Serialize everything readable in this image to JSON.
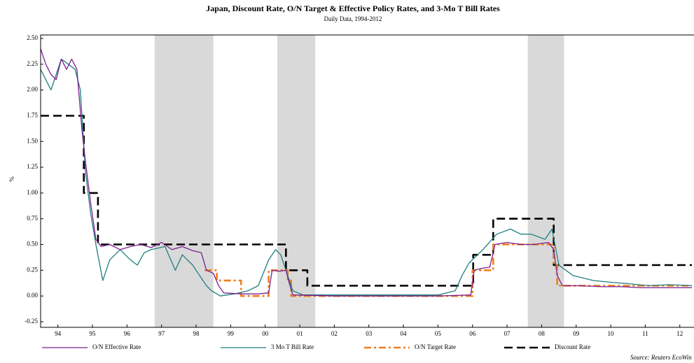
{
  "chart_data": {
    "type": "line",
    "title": "Japan, Discount Rate, O/N Target & Effective Policy Rates, and 3-Mo T Bill Rates",
    "subtitle": "Daily Data, 1994-2012",
    "y_label": "%",
    "source": "Source: Reuters EcoWin",
    "xlim": [
      1994,
      2012.85
    ],
    "ylim": [
      -0.25,
      2.5
    ],
    "xticks": [
      {
        "value": 1994.5,
        "label": "94"
      },
      {
        "value": 1995.5,
        "label": "95"
      },
      {
        "value": 1996.5,
        "label": "96"
      },
      {
        "value": 1997.5,
        "label": "97"
      },
      {
        "value": 1998.5,
        "label": "98"
      },
      {
        "value": 1999.5,
        "label": "99"
      },
      {
        "value": 2000.5,
        "label": "00"
      },
      {
        "value": 2001.5,
        "label": "01"
      },
      {
        "value": 2002.5,
        "label": "02"
      },
      {
        "value": 2003.5,
        "label": "03"
      },
      {
        "value": 2004.5,
        "label": "04"
      },
      {
        "value": 2005.5,
        "label": "05"
      },
      {
        "value": 2006.5,
        "label": "06"
      },
      {
        "value": 2007.5,
        "label": "07"
      },
      {
        "value": 2008.5,
        "label": "08"
      },
      {
        "value": 2009.5,
        "label": "09"
      },
      {
        "value": 2010.5,
        "label": "10"
      },
      {
        "value": 2011.5,
        "label": "11"
      },
      {
        "value": 2012.5,
        "label": "12"
      }
    ],
    "yticks": [
      {
        "value": 2.5,
        "label": "2.50"
      },
      2.25,
      {
        "value": 2.0,
        "label": "2.00"
      },
      1.75,
      {
        "value": 1.5,
        "label": "1.50"
      },
      1.25,
      {
        "value": 1.0,
        "label": "1.00"
      },
      0.75,
      {
        "value": 0.5,
        "label": "0.50"
      },
      0.25,
      {
        "value": 0,
        "label": "0.00"
      },
      -0.25
    ],
    "shaded_periods": [
      [
        1997.3,
        1999.0
      ],
      [
        2000.85,
        2001.95
      ],
      [
        2008.1,
        2009.15
      ]
    ],
    "shade_color": "#d9d9d9",
    "series": [
      {
        "name": "O/N Effective Rate",
        "color": "#7b1f8c",
        "line_style": "solid",
        "x": [
          1994,
          1994.15,
          1994.3,
          1994.45,
          1994.6,
          1994.75,
          1994.9,
          1995.05,
          1995.2,
          1995.3,
          1995.45,
          1995.6,
          1995.75,
          1996.0,
          1996.3,
          1996.6,
          1996.9,
          1997.2,
          1997.5,
          1997.8,
          1998.1,
          1998.4,
          1998.65,
          1998.8,
          1999.0,
          1999.15,
          1999.3,
          1999.8,
          2000.3,
          2000.6,
          2000.7,
          2000.9,
          2001.1,
          2001.2,
          2001.3,
          2002.5,
          2004.0,
          2005.5,
          2006.45,
          2006.55,
          2006.8,
          2007.0,
          2007.15,
          2007.5,
          2007.9,
          2008.3,
          2008.7,
          2008.85,
          2008.95,
          2009.1,
          2009.6,
          2010.2,
          2010.8,
          2011.4,
          2012.0,
          2012.85
        ],
        "values": [
          2.4,
          2.25,
          2.15,
          2.1,
          2.3,
          2.2,
          2.3,
          2.2,
          1.6,
          1.3,
          0.9,
          0.55,
          0.48,
          0.5,
          0.45,
          0.48,
          0.5,
          0.47,
          0.52,
          0.45,
          0.48,
          0.44,
          0.42,
          0.25,
          0.22,
          0.1,
          0.03,
          0.02,
          0.02,
          0.03,
          0.25,
          0.24,
          0.25,
          0.12,
          0.01,
          0.0,
          0.0,
          0.0,
          0.01,
          0.25,
          0.27,
          0.28,
          0.5,
          0.52,
          0.5,
          0.5,
          0.52,
          0.45,
          0.2,
          0.1,
          0.1,
          0.09,
          0.09,
          0.08,
          0.08,
          0.08
        ]
      },
      {
        "name": "3 Mo T Bill Rate",
        "color": "#1f7f7f",
        "line_style": "solid",
        "x": [
          1994,
          1994.15,
          1994.3,
          1994.45,
          1994.6,
          1994.8,
          1995.0,
          1995.15,
          1995.3,
          1995.45,
          1995.6,
          1995.8,
          1996.0,
          1996.3,
          1996.6,
          1996.8,
          1997.0,
          1997.2,
          1997.6,
          1997.9,
          1998.1,
          1998.4,
          1998.6,
          1998.8,
          1998.95,
          1999.2,
          1999.6,
          2000.0,
          2000.3,
          2000.6,
          2000.8,
          2000.95,
          2001.1,
          2001.3,
          2001.6,
          2003.0,
          2004.5,
          2005.5,
          2006.0,
          2006.2,
          2006.4,
          2006.8,
          2007.2,
          2007.6,
          2007.9,
          2008.2,
          2008.6,
          2008.8,
          2009.0,
          2009.4,
          2010.0,
          2010.6,
          2011.0,
          2011.6,
          2012.2,
          2012.85
        ],
        "values": [
          2.2,
          2.1,
          2.0,
          2.15,
          2.3,
          2.25,
          2.2,
          2.0,
          1.2,
          0.8,
          0.5,
          0.15,
          0.35,
          0.45,
          0.35,
          0.3,
          0.42,
          0.45,
          0.48,
          0.25,
          0.4,
          0.3,
          0.2,
          0.1,
          0.05,
          0.0,
          0.02,
          0.05,
          0.1,
          0.35,
          0.45,
          0.4,
          0.25,
          0.05,
          0.01,
          0.01,
          0.01,
          0.01,
          0.05,
          0.2,
          0.32,
          0.45,
          0.6,
          0.65,
          0.6,
          0.6,
          0.55,
          0.65,
          0.3,
          0.2,
          0.15,
          0.13,
          0.12,
          0.1,
          0.11,
          0.1
        ]
      },
      {
        "name": "O/N Target Rate",
        "color": "#f07f1a",
        "line_style": "dashdot",
        "x": [
          1998.75,
          1999.1,
          1999.1,
          1999.8,
          1999.8,
          2000.6,
          2000.6,
          2001.15,
          2001.15,
          2001.25,
          2001.25,
          2006.5,
          2006.5,
          2007.1,
          2007.1,
          2008.85,
          2008.85,
          2008.95,
          2008.95,
          2012.85
        ],
        "values": [
          0.25,
          0.25,
          0.15,
          0.15,
          0.0,
          0.0,
          0.25,
          0.25,
          0.15,
          0.15,
          0.0,
          0.0,
          0.25,
          0.25,
          0.5,
          0.5,
          0.3,
          0.3,
          0.1,
          0.1
        ]
      },
      {
        "name": "Discount Rate",
        "color": "#000000",
        "line_style": "dashed",
        "x": [
          1994,
          1995.25,
          1995.25,
          1995.66,
          1995.66,
          2001.1,
          2001.1,
          2001.72,
          2001.72,
          2006.52,
          2006.52,
          2007.1,
          2007.1,
          2008.85,
          2008.85,
          2012.85
        ],
        "values": [
          1.75,
          1.75,
          1.0,
          1.0,
          0.5,
          0.5,
          0.25,
          0.25,
          0.1,
          0.1,
          0.4,
          0.4,
          0.75,
          0.75,
          0.3,
          0.3
        ]
      }
    ]
  }
}
